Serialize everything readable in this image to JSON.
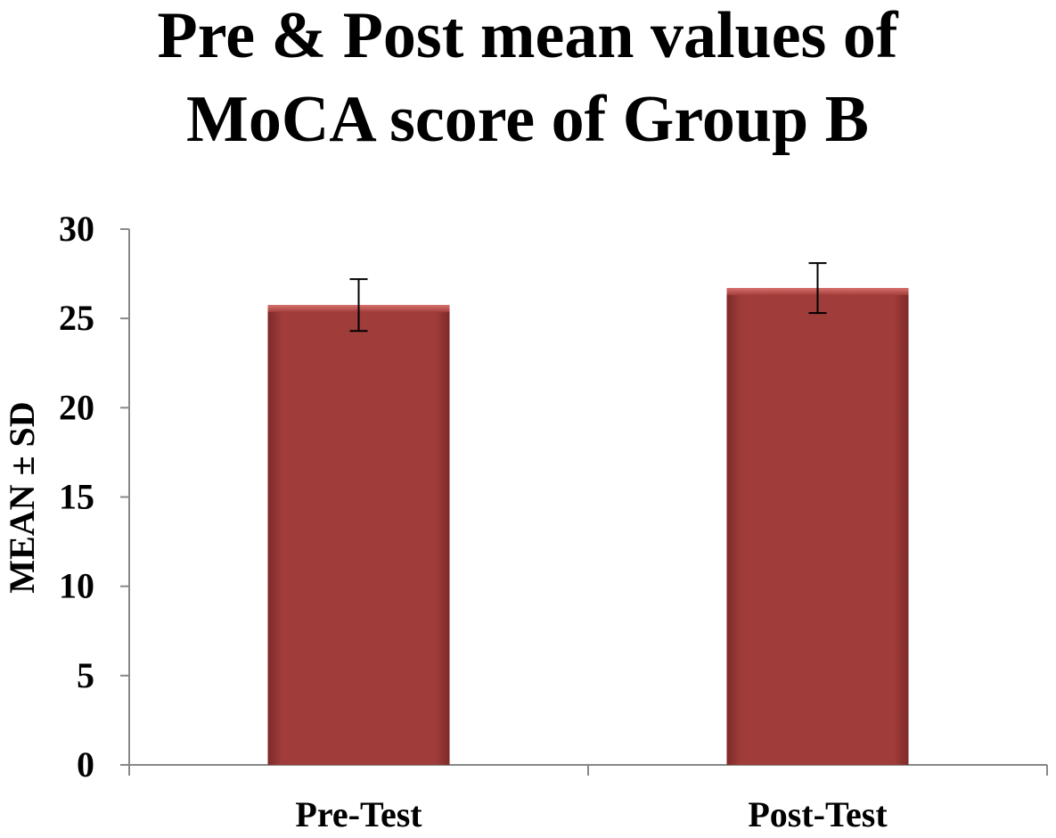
{
  "chart_data": {
    "type": "bar",
    "title_lines": [
      "Pre & Post mean values of",
      "MoCA score of Group B"
    ],
    "ylabel": "MEAN ± SD",
    "xlabel": "",
    "categories": [
      "Pre-Test",
      "Post-Test"
    ],
    "series": [
      {
        "values": [
          25.75,
          26.7
        ],
        "errors": [
          1.45,
          1.4
        ]
      }
    ],
    "ylim": [
      0,
      30
    ],
    "yticks": [
      "0",
      "5",
      "10",
      "15",
      "20",
      "25",
      "30"
    ],
    "grid": false,
    "legend": "none",
    "colors": {
      "bar": "#a03d3b",
      "bar_top": "#d9716d",
      "bar_shade": "#7d2a28",
      "axis": "#888888",
      "error_bar": "#000000"
    }
  }
}
